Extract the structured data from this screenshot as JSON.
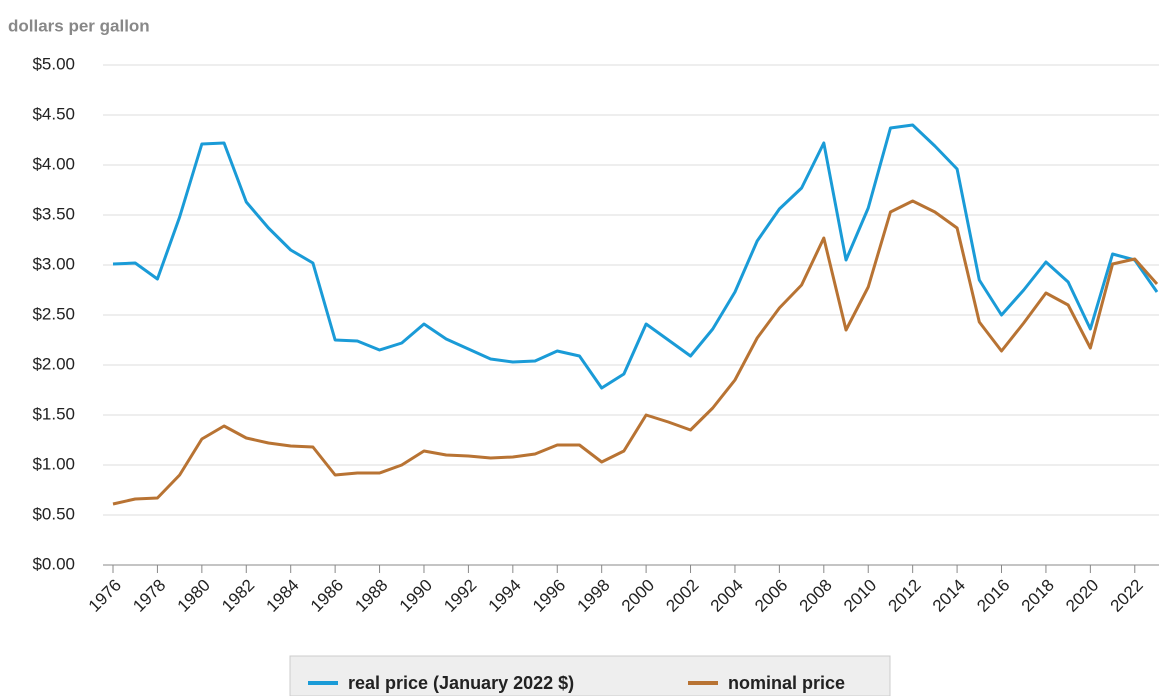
{
  "chart_data": {
    "type": "line",
    "title": "dollars per gallon",
    "x": [
      1976,
      1977,
      1978,
      1979,
      1980,
      1981,
      1982,
      1983,
      1984,
      1985,
      1986,
      1987,
      1988,
      1989,
      1990,
      1991,
      1992,
      1993,
      1994,
      1995,
      1996,
      1997,
      1998,
      1999,
      2000,
      2001,
      2002,
      2003,
      2004,
      2005,
      2006,
      2007,
      2008,
      2009,
      2010,
      2011,
      2012,
      2013,
      2014,
      2015,
      2016,
      2017,
      2018,
      2019,
      2020,
      2021,
      2022,
      2023
    ],
    "series": [
      {
        "name": "real price (January 2022 $)",
        "color": "#1a9bd7",
        "values": [
          3.01,
          3.02,
          2.86,
          3.48,
          4.21,
          4.22,
          3.63,
          3.37,
          3.15,
          3.02,
          2.25,
          2.24,
          2.15,
          2.22,
          2.41,
          2.26,
          2.16,
          2.06,
          2.03,
          2.04,
          2.14,
          2.09,
          1.77,
          1.91,
          2.41,
          2.25,
          2.09,
          2.36,
          2.73,
          3.24,
          3.56,
          3.77,
          4.22,
          3.05,
          3.57,
          4.37,
          4.4,
          4.19,
          3.96,
          2.85,
          2.5,
          2.75,
          3.03,
          2.83,
          2.36,
          3.11,
          3.05,
          2.73
        ]
      },
      {
        "name": "nominal price",
        "color": "#b87333",
        "values": [
          0.61,
          0.66,
          0.67,
          0.9,
          1.26,
          1.39,
          1.27,
          1.22,
          1.19,
          1.18,
          0.9,
          0.92,
          0.92,
          1.0,
          1.14,
          1.1,
          1.09,
          1.07,
          1.08,
          1.11,
          1.2,
          1.2,
          1.03,
          1.14,
          1.5,
          1.43,
          1.35,
          1.57,
          1.85,
          2.27,
          2.57,
          2.8,
          3.27,
          2.35,
          2.78,
          3.53,
          3.64,
          3.53,
          3.37,
          2.43,
          2.14,
          2.42,
          2.72,
          2.6,
          2.17,
          3.01,
          3.06,
          2.81
        ]
      }
    ],
    "xlim": [
      1976,
      2023
    ],
    "xticks": [
      1976,
      1978,
      1980,
      1982,
      1984,
      1986,
      1988,
      1990,
      1992,
      1994,
      1996,
      1998,
      2000,
      2002,
      2004,
      2006,
      2008,
      2010,
      2012,
      2014,
      2016,
      2018,
      2020,
      2022
    ],
    "ylim": [
      0,
      5
    ],
    "yticks": [
      {
        "value": 0,
        "label": "$0.00"
      },
      {
        "value": 0.5,
        "label": "$0.50"
      },
      {
        "value": 1,
        "label": "$1.00"
      },
      {
        "value": 1.5,
        "label": "$1.50"
      },
      {
        "value": 2,
        "label": "$2.00"
      },
      {
        "value": 2.5,
        "label": "$2.50"
      },
      {
        "value": 3,
        "label": "$3.00"
      },
      {
        "value": 3.5,
        "label": "$3.50"
      },
      {
        "value": 4,
        "label": "$4.00"
      },
      {
        "value": 4.5,
        "label": "$4.50"
      },
      {
        "value": 5,
        "label": "$5.00"
      }
    ],
    "grid": true,
    "legend": "bottom"
  }
}
